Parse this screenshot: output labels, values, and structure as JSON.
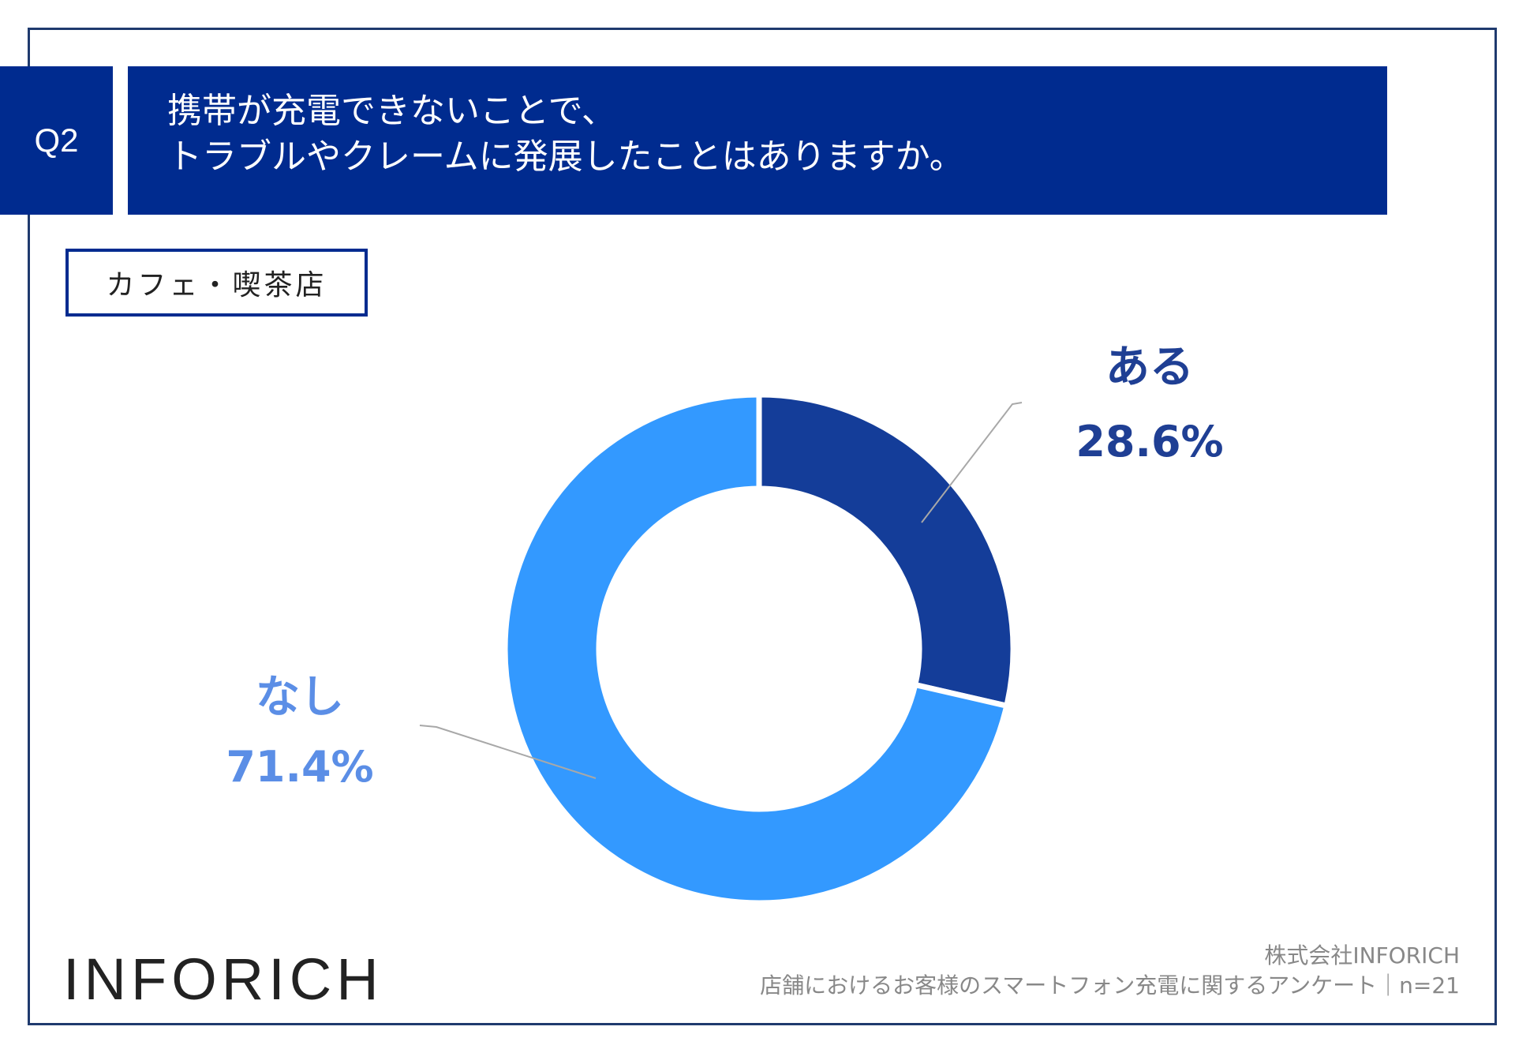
{
  "question": {
    "number": "Q2",
    "lines": [
      "携帯が充電できないことで、",
      "トラブルやクレームに発展したことはありますか。"
    ]
  },
  "category": "カフェ・喫茶店",
  "brand": "INFORICH",
  "source": {
    "company": "株式会社INFORICH",
    "survey": "店舗におけるお客様のスマートフォン充電に関するアンケート｜n=21"
  },
  "chart_data": {
    "type": "pie",
    "style": "donut",
    "categories": [
      "ある",
      "なし"
    ],
    "values": [
      28.6,
      71.4
    ],
    "value_labels": [
      "28.6%",
      "71.4%"
    ],
    "colors": [
      "#143d99",
      "#3399ff"
    ],
    "label_colors": [
      "#1f3f94",
      "#5b8ee6"
    ]
  }
}
